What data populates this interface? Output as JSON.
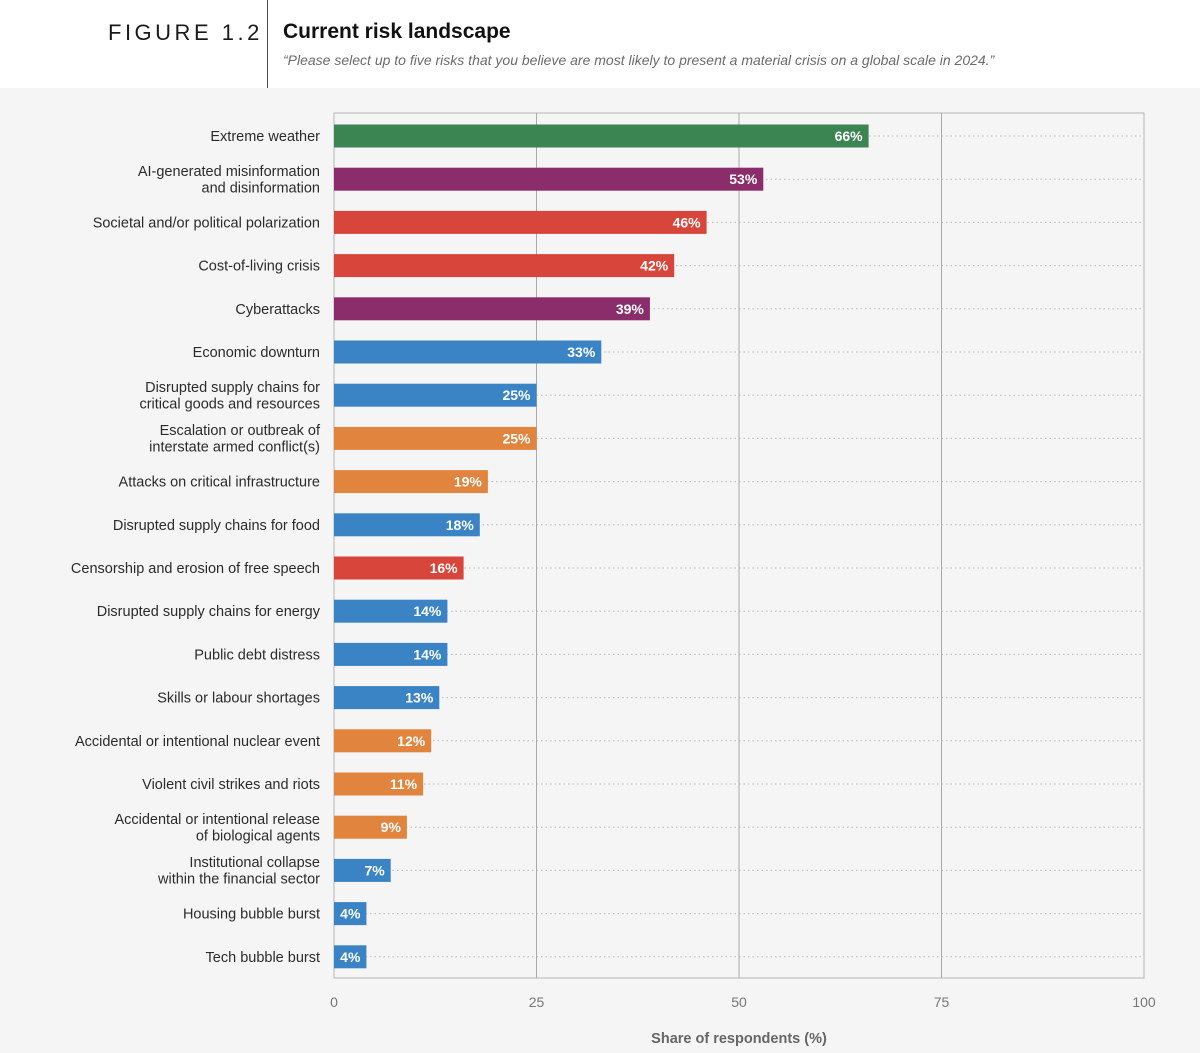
{
  "figure": {
    "label": "FIGURE 1.2",
    "title": "Current risk landscape",
    "subtitle": "“Please select up to five risks that you believe are most likely to present a material crisis on a global scale in 2024.”"
  },
  "colors": {
    "environmental": "#3a8552",
    "technological": "#8c2d6b",
    "societal": "#d8463b",
    "geopolitical": "#e0843e",
    "economic": "#3a83c4"
  },
  "chart_data": {
    "type": "bar",
    "orientation": "horizontal",
    "xlabel": "Share of respondents (%)",
    "xlim": [
      0,
      100
    ],
    "xticks": [
      0,
      25,
      50,
      75,
      100
    ],
    "grid": true,
    "categories": [
      [
        "Extreme weather"
      ],
      [
        "AI-generated misinformation",
        "and disinformation"
      ],
      [
        "Societal and/or political polarization"
      ],
      [
        "Cost-of-living crisis"
      ],
      [
        "Cyberattacks"
      ],
      [
        "Economic downturn"
      ],
      [
        "Disrupted supply chains for",
        "critical goods and resources"
      ],
      [
        "Escalation or outbreak of",
        "interstate armed conflict(s)"
      ],
      [
        "Attacks on critical infrastructure"
      ],
      [
        "Disrupted supply chains for food"
      ],
      [
        "Censorship and erosion of free speech"
      ],
      [
        "Disrupted supply chains for energy"
      ],
      [
        "Public debt distress"
      ],
      [
        "Skills or labour shortages"
      ],
      [
        "Accidental or intentional nuclear event"
      ],
      [
        "Violent civil strikes and riots"
      ],
      [
        "Accidental or intentional release",
        "of biological agents"
      ],
      [
        "Institutional collapse",
        "within the financial sector"
      ],
      [
        "Housing bubble burst"
      ],
      [
        "Tech bubble burst"
      ]
    ],
    "values": [
      66,
      53,
      46,
      42,
      39,
      33,
      25,
      25,
      19,
      18,
      16,
      14,
      14,
      13,
      12,
      11,
      9,
      7,
      4,
      4
    ],
    "value_labels": [
      "66%",
      "53%",
      "46%",
      "42%",
      "39%",
      "33%",
      "25%",
      "25%",
      "19%",
      "18%",
      "16%",
      "14%",
      "14%",
      "13%",
      "12%",
      "11%",
      "9%",
      "7%",
      "4%",
      "4%"
    ],
    "bar_groups": [
      "environmental",
      "technological",
      "societal",
      "societal",
      "technological",
      "economic",
      "economic",
      "geopolitical",
      "geopolitical",
      "economic",
      "societal",
      "economic",
      "economic",
      "economic",
      "geopolitical",
      "geopolitical",
      "geopolitical",
      "economic",
      "economic",
      "economic"
    ]
  }
}
